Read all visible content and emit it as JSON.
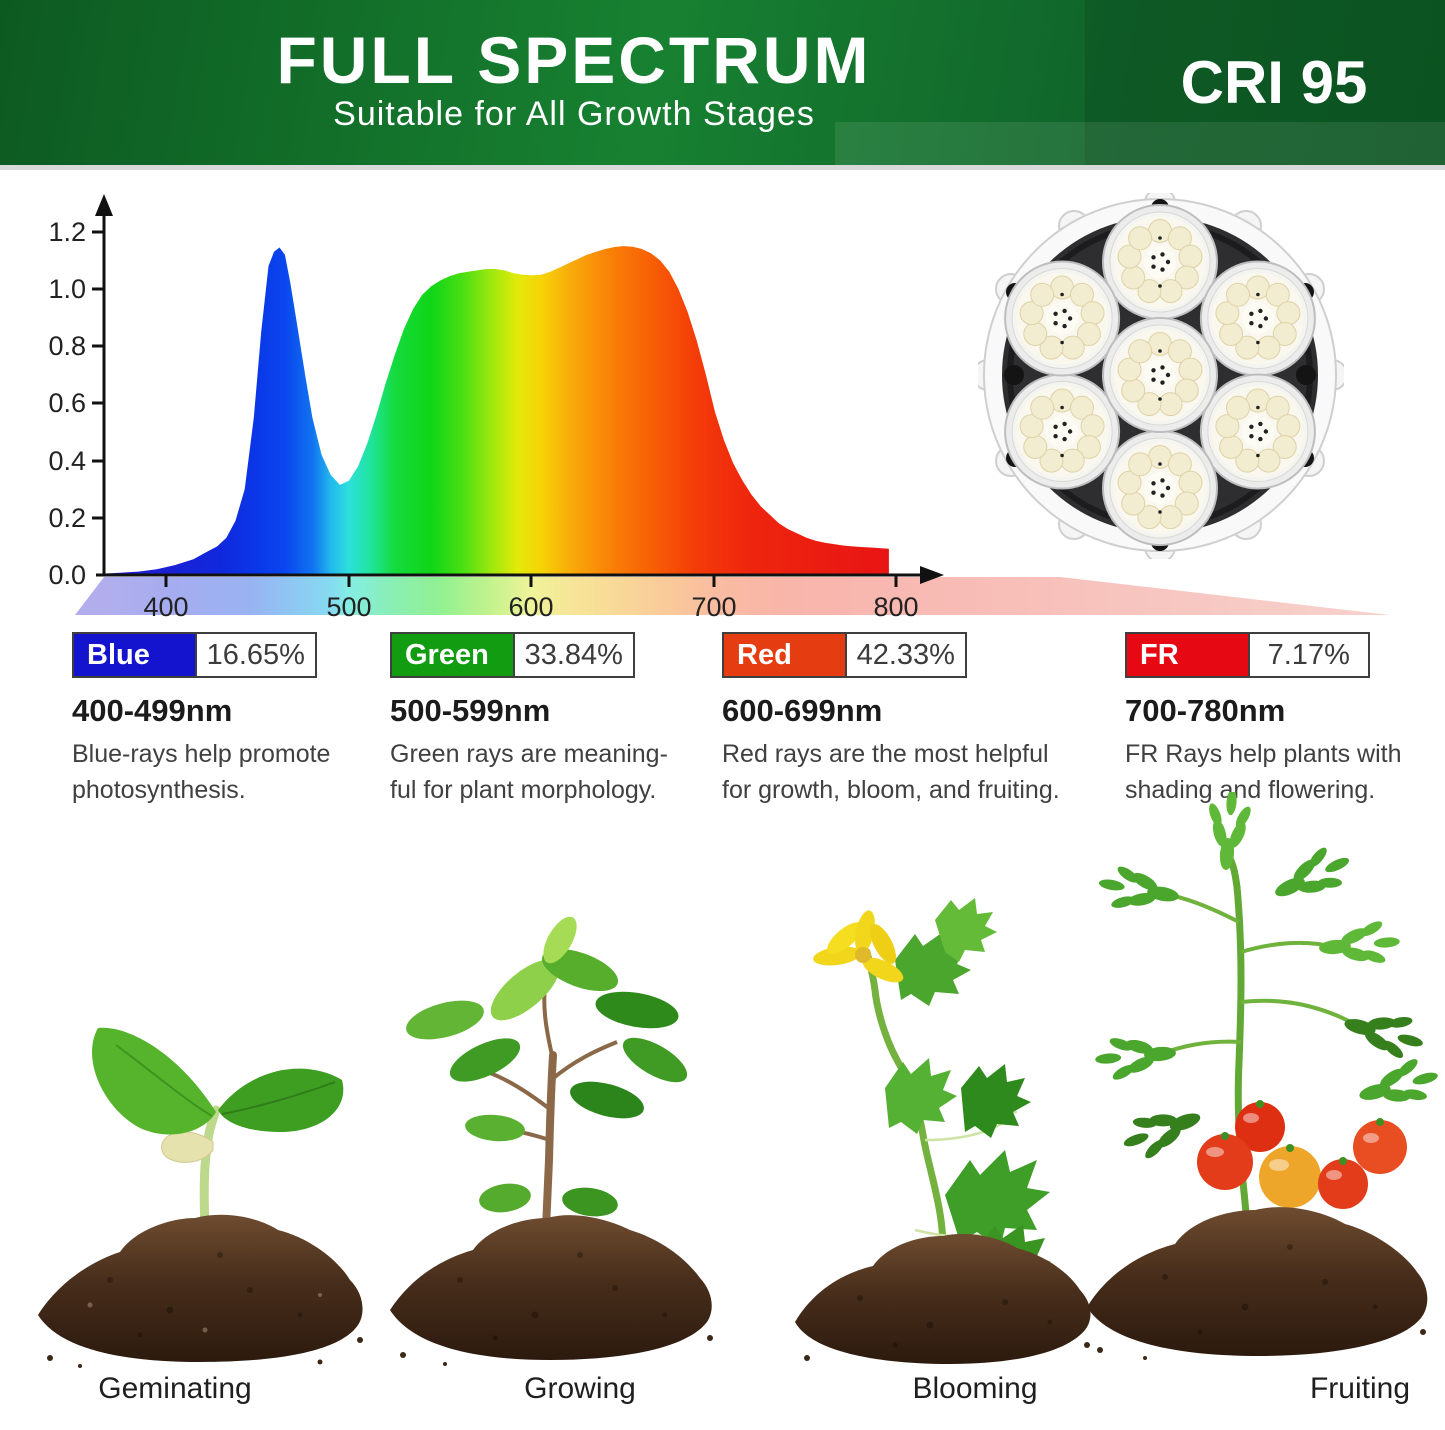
{
  "header": {
    "title": "FULL SPECTRUM",
    "subtitle": "Suitable for All Growth Stages",
    "badge": "CRI 95",
    "bg_green_dark": "#0d5a21",
    "bg_green_mid": "#178131"
  },
  "chart_data": {
    "type": "area",
    "title": "",
    "xlabel": "",
    "ylabel": "",
    "xlim": [
      355,
      820
    ],
    "ylim": [
      0,
      1.25
    ],
    "grid": false,
    "x_ticks": [
      400,
      500,
      600,
      700,
      800
    ],
    "y_ticks": [
      "1.2",
      "1.0",
      "0.8",
      "0.6",
      "0.4",
      "0.2",
      "0.0"
    ],
    "cutoff_nm": 795,
    "peaks": [
      {
        "nm": 462,
        "value": 1.145
      },
      {
        "nm": 655,
        "value": 1.15
      }
    ],
    "dip": {
      "nm": 495,
      "value": 0.315
    },
    "series": [
      {
        "name": "spectral power distribution",
        "x": [
          365,
          375,
          385,
          395,
          405,
          415,
          422,
          428,
          433,
          438,
          443,
          448,
          452,
          456,
          459,
          462,
          465,
          468,
          472,
          476,
          480,
          485,
          490,
          495,
          500,
          505,
          510,
          515,
          520,
          525,
          530,
          535,
          540,
          545,
          550,
          555,
          560,
          565,
          570,
          575,
          580,
          585,
          590,
          595,
          600,
          605,
          610,
          615,
          620,
          625,
          630,
          635,
          640,
          645,
          650,
          655,
          660,
          665,
          670,
          675,
          680,
          685,
          690,
          695,
          700,
          705,
          710,
          715,
          720,
          725,
          730,
          735,
          740,
          745,
          750,
          755,
          760,
          765,
          770,
          775,
          780,
          785,
          790,
          795
        ],
        "y": [
          0.005,
          0.008,
          0.012,
          0.02,
          0.035,
          0.055,
          0.08,
          0.1,
          0.13,
          0.19,
          0.3,
          0.55,
          0.85,
          1.08,
          1.13,
          1.145,
          1.12,
          1.02,
          0.86,
          0.7,
          0.55,
          0.42,
          0.35,
          0.315,
          0.33,
          0.38,
          0.46,
          0.56,
          0.67,
          0.77,
          0.86,
          0.93,
          0.98,
          1.01,
          1.03,
          1.045,
          1.055,
          1.06,
          1.065,
          1.07,
          1.07,
          1.065,
          1.055,
          1.05,
          1.048,
          1.05,
          1.06,
          1.075,
          1.09,
          1.105,
          1.12,
          1.13,
          1.14,
          1.147,
          1.15,
          1.148,
          1.14,
          1.125,
          1.1,
          1.06,
          1.0,
          0.92,
          0.82,
          0.7,
          0.57,
          0.47,
          0.39,
          0.33,
          0.28,
          0.24,
          0.21,
          0.18,
          0.16,
          0.145,
          0.13,
          0.12,
          0.113,
          0.108,
          0.103,
          0.1,
          0.098,
          0.096,
          0.094,
          0.092
        ]
      }
    ]
  },
  "bands": [
    {
      "label": "Blue",
      "percent": "16.65%",
      "range": "400-499nm",
      "color": "#1414CE",
      "desc_line1": "Blue-rays help promote",
      "desc_line2": "photosynthesis."
    },
    {
      "label": "Green",
      "percent": "33.84%",
      "range": "500-599nm",
      "color": "#129C12",
      "desc_line1": "Green rays are meaning-",
      "desc_line2": "ful for plant morphology."
    },
    {
      "label": "Red",
      "percent": "42.33%",
      "range": "600-699nm",
      "color": "#E63C12",
      "desc_line1": "Red rays are the most helpful",
      "desc_line2": "for growth, bloom, and fruiting."
    },
    {
      "label": "FR",
      "percent": "7.17%",
      "range": "700-780nm",
      "color": "#E60914",
      "desc_line1": "FR Rays help plants with",
      "desc_line2": "shading and flowering."
    }
  ],
  "product": {
    "name": "LED grow light head with 7 LED clusters"
  },
  "stages": [
    {
      "label": "Geminating"
    },
    {
      "label": "Growing"
    },
    {
      "label": "Blooming"
    },
    {
      "label": "Fruiting"
    }
  ]
}
